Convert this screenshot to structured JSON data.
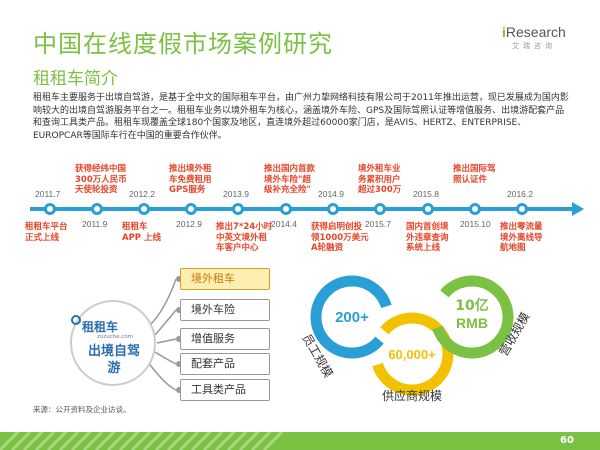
{
  "header": {
    "title": "中国在线度假市场案例研究",
    "subtitle": "租租车简介",
    "logo_main": "Research",
    "logo_i": "i",
    "logo_sub": "艾瑞咨询"
  },
  "intro": "租租车主要服务于出境自驾游，是基于全中文的国际租车平台，由广州力挚网络科技有限公司于2011年推出运营，现已发展成为国内影响较大的出境自驾游服务平台之一。租租车业务以境外租车为核心，涵盖境外车险、GPS及国际驾照认证等增值服务、出境游配套产品和查询工具类产品。租租车现覆盖全球180个国家及地区，直连境外超过60000家门店，是AVIS、HERTZ、ENTERPRISE、EUROPCAR等国际车行在中国的重要合作伙伴。",
  "timeline": {
    "events": [
      {
        "date": "2011.7",
        "text": "租租车平台\n正式上线"
      },
      {
        "date": "2011.9",
        "text": "获得经纬中国\n300万人民币\n天使轮投资"
      },
      {
        "date": "2012.2",
        "text": "租租车\nAPP 上线"
      },
      {
        "date": "2012.9",
        "text": "推出境外租\n车免费租用\nGPS服务"
      },
      {
        "date": "2013.9",
        "text": "推出7*24小时\n中英文境外租\n车客户中心"
      },
      {
        "date": "2014.4",
        "text": "推出国内首款\n境外车险\"超\n级补充全险\""
      },
      {
        "date": "2014.9",
        "text": "获得启明创投\n领1000万美元\nA轮融资"
      },
      {
        "date": "2015.7",
        "text": "境外租车业\n务累积用户\n超过300万"
      },
      {
        "date": "2015.8",
        "text": "国内首创境\n外违章查询\n系统上线"
      },
      {
        "date": "2015.10",
        "text": "推出国际驾\n照认证件"
      },
      {
        "date": "2016.2",
        "text": "推出零流量\n境外离线导\n航地图"
      }
    ]
  },
  "product": {
    "brand": "租租车",
    "url": "zuzuche.com",
    "slogan": "出境自驾游",
    "services": [
      "境外租车",
      "境外车险",
      "增值服务",
      "配套产品",
      "工具类产品"
    ]
  },
  "metrics": {
    "staff_value": "200+",
    "staff_label": "员工规模",
    "supplier_value": "60,000+",
    "supplier_label": "供应商规模",
    "revenue_value_1": "10亿",
    "revenue_value_2": "RMB",
    "revenue_label": "营收规模"
  },
  "source": "来源：公开资料及企业访谈。",
  "page_number": "60",
  "colors": {
    "brand_green": "#7bc143",
    "timeline_blue": "#2a9fd6",
    "event_red": "#e6452a",
    "staff_blue": "#2a9fd6",
    "supplier_yellow": "#f2c100",
    "revenue_green": "#7bc143"
  }
}
